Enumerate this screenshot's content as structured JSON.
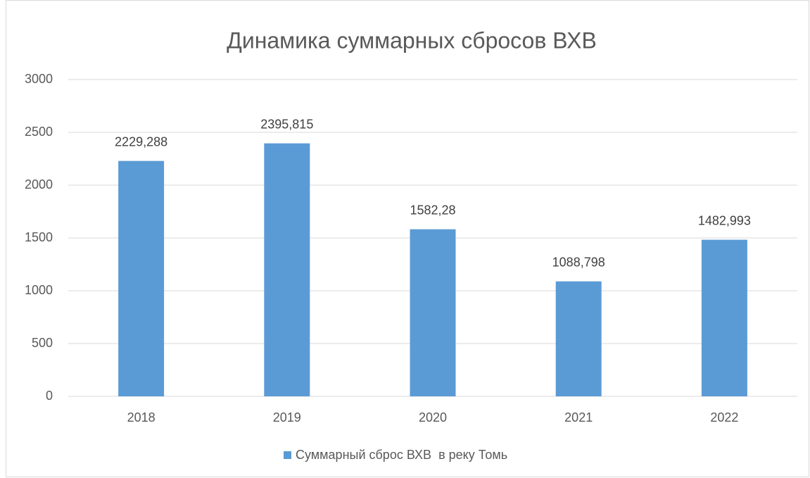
{
  "chart_data": {
    "type": "bar",
    "title": "Динамика суммарных сбросов ВХВ",
    "categories": [
      "2018",
      "2019",
      "2020",
      "2021",
      "2022"
    ],
    "series": [
      {
        "name": "Суммарный сброс ВХВ  в реку Томь",
        "color": "#5b9bd5",
        "values": [
          2229.288,
          2395.815,
          1582.28,
          1088.798,
          1482.993
        ],
        "value_labels": [
          "2229,288",
          "2395,815",
          "1582,28",
          "1088,798",
          "1482,993"
        ]
      }
    ],
    "ylim": [
      0,
      3000
    ],
    "yticks": [
      0,
      500,
      1000,
      1500,
      2000,
      2500,
      3000
    ],
    "grid": true,
    "legend": "bottom"
  }
}
